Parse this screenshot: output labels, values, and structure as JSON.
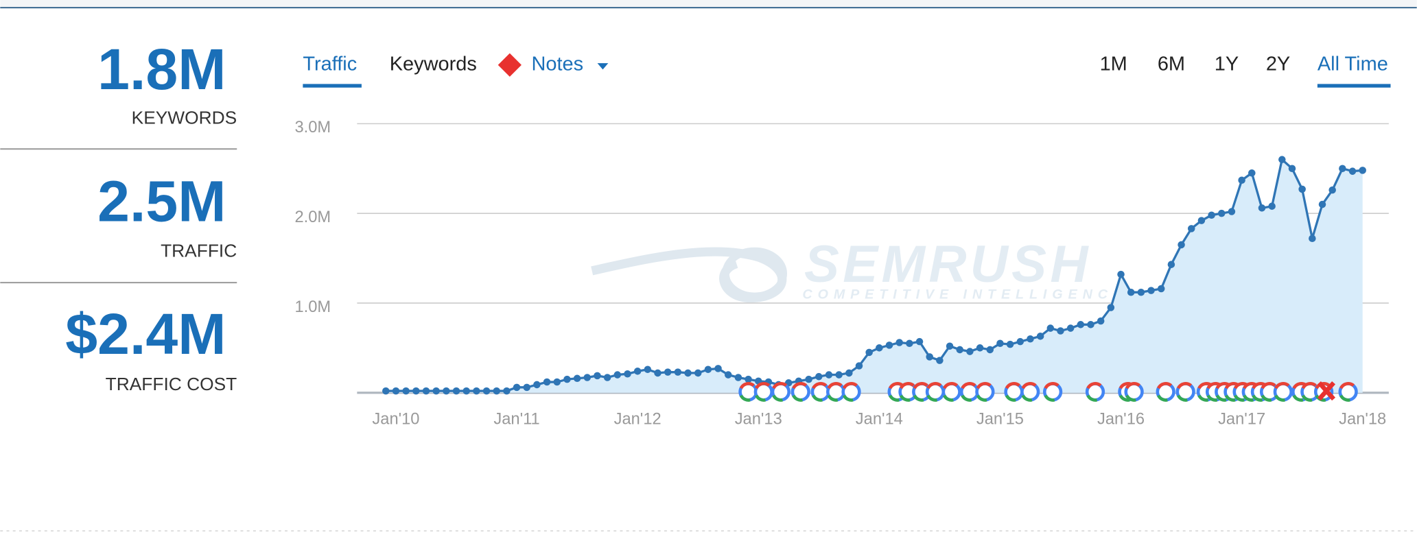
{
  "stats": [
    {
      "value": "1.8M",
      "label": "KEYWORDS"
    },
    {
      "value": "2.5M",
      "label": "TRAFFIC"
    },
    {
      "value": "$2.4M",
      "label": "TRAFFIC COST"
    }
  ],
  "tabs": [
    "Traffic",
    "Keywords",
    "Notes"
  ],
  "periods": [
    "1M",
    "6M",
    "1Y",
    "2Y",
    "All Time"
  ],
  "watermark": {
    "brand": "SEMRUSH",
    "tagline": "COMPETITIVE INTELLIGENCE"
  },
  "chart_data": {
    "type": "line",
    "color": "#2f75b5",
    "area_color": "#d8ecfa",
    "x": [
      "2009-12",
      "2010-01",
      "2010-02",
      "2010-03",
      "2010-04",
      "2010-05",
      "2010-06",
      "2010-07",
      "2010-08",
      "2010-09",
      "2010-10",
      "2010-11",
      "2010-12",
      "2011-01",
      "2011-02",
      "2011-03",
      "2011-04",
      "2011-05",
      "2011-06",
      "2011-07",
      "2011-08",
      "2011-09",
      "2011-10",
      "2011-11",
      "2011-12",
      "2012-01",
      "2012-02",
      "2012-03",
      "2012-04",
      "2012-05",
      "2012-06",
      "2012-07",
      "2012-08",
      "2012-09",
      "2012-10",
      "2012-11",
      "2012-12",
      "2013-01",
      "2013-02",
      "2013-03",
      "2013-04",
      "2013-05",
      "2013-06",
      "2013-07",
      "2013-08",
      "2013-09",
      "2013-10",
      "2013-11",
      "2013-12",
      "2014-01",
      "2014-02",
      "2014-03",
      "2014-04",
      "2014-05",
      "2014-06",
      "2014-07",
      "2014-08",
      "2014-09",
      "2014-10",
      "2014-11",
      "2014-12",
      "2015-01",
      "2015-02",
      "2015-03",
      "2015-04",
      "2015-05",
      "2015-06",
      "2015-07",
      "2015-08",
      "2015-09",
      "2015-10",
      "2015-11",
      "2015-12",
      "2016-01",
      "2016-02",
      "2016-03",
      "2016-04",
      "2016-05",
      "2016-06",
      "2016-07",
      "2016-08",
      "2016-09",
      "2016-10",
      "2016-11",
      "2016-12",
      "2017-01",
      "2017-02",
      "2017-03",
      "2017-04",
      "2017-05",
      "2017-06",
      "2017-07",
      "2017-08",
      "2017-09",
      "2017-10",
      "2017-11",
      "2017-12",
      "2018-01"
    ],
    "values": [
      20000,
      20000,
      20000,
      20000,
      20000,
      20000,
      20000,
      20000,
      20000,
      20000,
      20000,
      20000,
      20000,
      60000,
      60000,
      90000,
      120000,
      120000,
      150000,
      160000,
      170000,
      190000,
      170000,
      200000,
      210000,
      240000,
      260000,
      220000,
      230000,
      230000,
      220000,
      220000,
      260000,
      270000,
      200000,
      170000,
      150000,
      130000,
      120000,
      90000,
      110000,
      130000,
      150000,
      180000,
      200000,
      200000,
      220000,
      300000,
      450000,
      500000,
      530000,
      560000,
      550000,
      570000,
      400000,
      360000,
      520000,
      480000,
      460000,
      500000,
      480000,
      550000,
      540000,
      570000,
      600000,
      630000,
      720000,
      690000,
      720000,
      760000,
      760000,
      800000,
      950000,
      1320000,
      1120000,
      1120000,
      1140000,
      1160000,
      1430000,
      1650000,
      1830000,
      1920000,
      1980000,
      2000000,
      2020000,
      2370000,
      2450000,
      2060000,
      2080000,
      2600000,
      2500000,
      2270000,
      1720000,
      2100000,
      2260000,
      2500000,
      2470000,
      2480000
    ],
    "xlim": [
      "2010-01",
      "2018-01"
    ],
    "xticks": [
      {
        "value": "2010-01",
        "label": "Jan'10"
      },
      {
        "value": "2011-01",
        "label": "Jan'11"
      },
      {
        "value": "2012-01",
        "label": "Jan'12"
      },
      {
        "value": "2013-01",
        "label": "Jan'13"
      },
      {
        "value": "2014-01",
        "label": "Jan'14"
      },
      {
        "value": "2015-01",
        "label": "Jan'15"
      },
      {
        "value": "2016-01",
        "label": "Jan'16"
      },
      {
        "value": "2017-01",
        "label": "Jan'17"
      },
      {
        "value": "2018-01",
        "label": "Jan'18"
      }
    ],
    "ylim": [
      0,
      3000000
    ],
    "yticks": [
      {
        "value": 1000000,
        "label": "1.0M"
      },
      {
        "value": 2000000,
        "label": "2.0M"
      },
      {
        "value": 3000000,
        "label": "3.0M"
      }
    ],
    "grid": true
  }
}
